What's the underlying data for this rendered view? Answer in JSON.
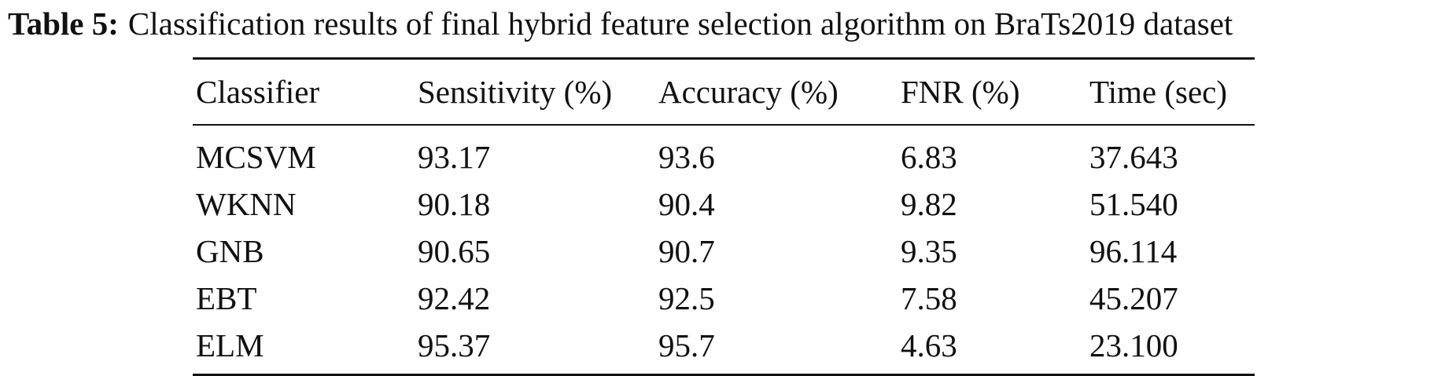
{
  "caption": {
    "label": "Table 5:",
    "text": "Classification results of final hybrid feature selection algorithm on BraTs2019 dataset"
  },
  "table": {
    "headers": [
      "Classifier",
      "Sensitivity (%)",
      "Accuracy (%)",
      "FNR (%)",
      "Time (sec)"
    ],
    "rows": [
      [
        "MCSVM",
        "93.17",
        "93.6",
        "6.83",
        "37.643"
      ],
      [
        "WKNN",
        "90.18",
        "90.4",
        "9.82",
        "51.540"
      ],
      [
        "GNB",
        "90.65",
        "90.7",
        "9.35",
        "96.114"
      ],
      [
        "EBT",
        "92.42",
        "92.5",
        "7.58",
        "45.207"
      ],
      [
        "ELM",
        "95.37",
        "95.7",
        "4.63",
        "23.100"
      ]
    ]
  }
}
